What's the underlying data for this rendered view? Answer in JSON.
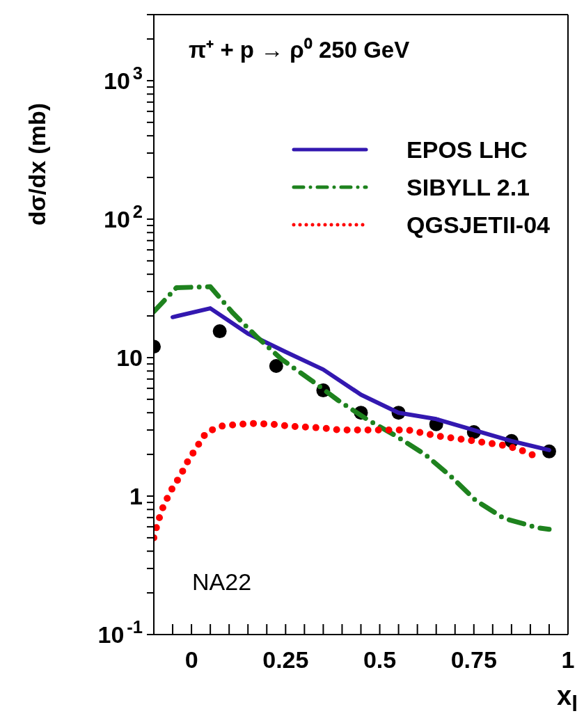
{
  "chart_data": {
    "type": "line",
    "title": "π⁺ + p → ρ⁰ 250 GeV",
    "xlabel": "x$_{l}$",
    "ylabel": "dσ/dx (mb)",
    "annotations": [
      "NA22"
    ],
    "log": "y",
    "grid": false,
    "legend": "top right",
    "xlim": [
      -0.1,
      1
    ],
    "ylim": [
      0.1,
      3000
    ],
    "xticks": [
      {
        "value": -0.05,
        "label": null
      },
      0,
      {
        "value": 0.05,
        "label": null
      },
      {
        "value": 0.1,
        "label": null
      },
      {
        "value": 0.15,
        "label": null
      },
      {
        "value": 0.2,
        "label": null
      },
      0.25,
      {
        "value": 0.3,
        "label": null
      },
      {
        "value": 0.35,
        "label": null
      },
      {
        "value": 0.4,
        "label": null
      },
      {
        "value": 0.45,
        "label": null
      },
      0.5,
      {
        "value": 0.55,
        "label": null
      },
      {
        "value": 0.6,
        "label": null
      },
      {
        "value": 0.65,
        "label": null
      },
      {
        "value": 0.7,
        "label": null
      },
      0.75,
      {
        "value": 0.8,
        "label": null
      },
      {
        "value": 0.85,
        "label": null
      },
      {
        "value": 0.9,
        "label": null
      },
      {
        "value": 0.95,
        "label": null
      },
      1
    ],
    "yticks": [
      {
        "value": 0.1,
        "label": "10$^{-1}$"
      },
      {
        "value": 0.2,
        "label": null
      },
      {
        "value": 0.3,
        "label": null
      },
      {
        "value": 0.4,
        "label": null
      },
      {
        "value": 0.5,
        "label": null
      },
      {
        "value": 0.6,
        "label": null
      },
      {
        "value": 0.7,
        "label": null
      },
      {
        "value": 0.8,
        "label": null
      },
      {
        "value": 0.9,
        "label": null
      },
      1,
      {
        "value": 2,
        "label": null
      },
      {
        "value": 3,
        "label": null
      },
      {
        "value": 4,
        "label": null
      },
      {
        "value": 5,
        "label": null
      },
      {
        "value": 6,
        "label": null
      },
      {
        "value": 7,
        "label": null
      },
      {
        "value": 8,
        "label": null
      },
      {
        "value": 9,
        "label": null
      },
      10,
      {
        "value": 20,
        "label": null
      },
      {
        "value": 30,
        "label": null
      },
      {
        "value": 40,
        "label": null
      },
      {
        "value": 50,
        "label": null
      },
      {
        "value": 60,
        "label": null
      },
      {
        "value": 70,
        "label": null
      },
      {
        "value": 80,
        "label": null
      },
      {
        "value": 90,
        "label": null
      },
      {
        "value": 100,
        "label": "10$^{2}$"
      },
      {
        "value": 200,
        "label": null
      },
      {
        "value": 300,
        "label": null
      },
      {
        "value": 400,
        "label": null
      },
      {
        "value": 500,
        "label": null
      },
      {
        "value": 600,
        "label": null
      },
      {
        "value": 700,
        "label": null
      },
      {
        "value": 800,
        "label": null
      },
      {
        "value": 900,
        "label": null
      },
      {
        "value": 1000,
        "label": "10$^{3}$"
      },
      {
        "value": 2000,
        "label": null
      },
      {
        "value": 3000,
        "label": null
      }
    ],
    "series": [
      {
        "type": "scatter",
        "color": "#000000",
        "marker": "circle",
        "x": [
          -0.1,
          0.075,
          0.225,
          0.35,
          0.45,
          0.55,
          0.65,
          0.75,
          0.85,
          0.95
        ],
        "values": [
          12,
          15.5,
          8.7,
          5.8,
          4.0,
          4.0,
          3.3,
          2.9,
          2.5,
          2.1
        ]
      },
      {
        "name": "EPOS LHC",
        "color": "#3318b0",
        "line_style": "solid",
        "marker": "none",
        "x": [
          -0.05,
          0.05,
          0.15,
          0.25,
          0.35,
          0.45,
          0.55,
          0.65,
          0.75,
          0.85,
          0.95
        ],
        "values": [
          19.6,
          22.7,
          14.9,
          11.0,
          8.2,
          5.4,
          4.0,
          3.6,
          3.0,
          2.5,
          2.15
        ]
      },
      {
        "name": "SIBYLL 2.1",
        "color": "#1e821e",
        "line_style": "dashed",
        "marker": "none",
        "x": [
          -0.1,
          -0.04,
          0.05,
          0.11,
          0.175,
          0.24,
          0.32,
          0.39,
          0.465,
          0.545,
          0.62,
          0.69,
          0.755,
          0.83,
          0.92,
          0.95
        ],
        "values": [
          21.5,
          32,
          32.5,
          21,
          14,
          9.7,
          6.8,
          4.9,
          3.6,
          2.7,
          2.0,
          1.38,
          0.93,
          0.69,
          0.59,
          0.575
        ]
      },
      {
        "name": "QGSJETII-04",
        "color": "#ff0000",
        "line_style": "dotted",
        "marker": "none",
        "x": [
          -0.1,
          -0.09,
          -0.075,
          -0.055,
          -0.03,
          -0.01,
          0.015,
          0.04,
          0.08,
          0.125,
          0.17,
          0.215,
          0.26,
          0.305,
          0.35,
          0.395,
          0.44,
          0.485,
          0.53,
          0.575,
          0.62,
          0.66,
          0.705,
          0.75,
          0.795,
          0.84,
          0.885,
          0.925
        ],
        "values": [
          0.5,
          0.64,
          0.84,
          1.09,
          1.4,
          1.78,
          2.28,
          2.9,
          3.2,
          3.3,
          3.35,
          3.3,
          3.2,
          3.15,
          3.1,
          3.0,
          3.0,
          3.0,
          3.0,
          3.0,
          2.83,
          2.7,
          2.6,
          2.5,
          2.4,
          2.3,
          2.1,
          1.88
        ]
      }
    ]
  }
}
